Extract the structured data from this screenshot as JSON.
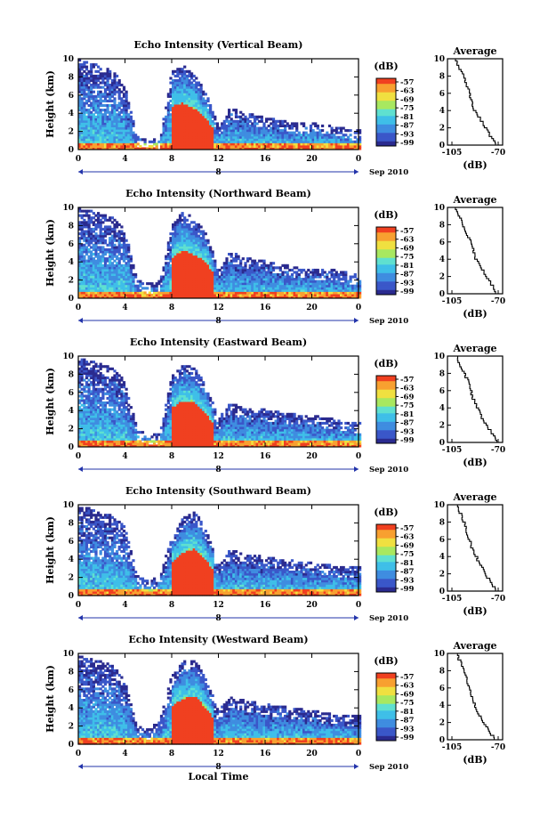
{
  "figure": {
    "date_label": "Sep 2010",
    "day_label": "8",
    "xlabel": "Local Time",
    "ylabel": "Height (km)",
    "colorbar_unit": "(dB)",
    "colorbar_ticks": [
      "-57",
      "-63",
      "-69",
      "-75",
      "-81",
      "-87",
      "-93",
      "-99"
    ],
    "x_ticks": [
      "0",
      "4",
      "8",
      "12",
      "16",
      "20",
      "0"
    ],
    "y_ticks": [
      "0",
      "2",
      "4",
      "6",
      "8",
      "10"
    ],
    "avg_title": "Average",
    "avg_xlabel": "(dB)",
    "avg_ticks": [
      "-105",
      "-70"
    ],
    "colormap": [
      "#2b2b8f",
      "#3a57c9",
      "#3f8de0",
      "#3fbfe8",
      "#5fe0d0",
      "#a8e860",
      "#f0e040",
      "#f8a030",
      "#f04020"
    ]
  },
  "chart_data": [
    {
      "type": "heatmap",
      "title": "Echo Intensity (Vertical Beam)",
      "xlabel": "",
      "ylabel": "Height (km)",
      "xlim": [
        0,
        24
      ],
      "ylim": [
        0,
        10
      ],
      "clim": [
        -99,
        -57
      ],
      "echo_top_km": [
        [
          0,
          9.8
        ],
        [
          1,
          9.5
        ],
        [
          2,
          9.0
        ],
        [
          3,
          8.5
        ],
        [
          4,
          7.0
        ],
        [
          5,
          1.5
        ],
        [
          6,
          1.0
        ],
        [
          7,
          1.2
        ],
        [
          8,
          8.5
        ],
        [
          9,
          9.2
        ],
        [
          10,
          8.0
        ],
        [
          11,
          6.0
        ],
        [
          12,
          2.5
        ],
        [
          13,
          4.5
        ],
        [
          14,
          4.0
        ],
        [
          16,
          3.5
        ],
        [
          18,
          3.0
        ],
        [
          20,
          2.8
        ],
        [
          22,
          2.5
        ],
        [
          24,
          2.0
        ]
      ],
      "average": {
        "x_db": [
          -72,
          -76,
          -80,
          -84,
          -88,
          -90,
          -92,
          -94,
          -96,
          -100,
          -103
        ],
        "height_km": [
          0,
          1,
          2,
          3,
          4,
          5,
          6,
          7,
          8,
          9,
          10
        ]
      }
    },
    {
      "type": "heatmap",
      "title": "Echo Intensity (Northward Beam)",
      "xlabel": "",
      "ylabel": "Height (km)",
      "xlim": [
        0,
        24
      ],
      "ylim": [
        0,
        10
      ],
      "clim": [
        -99,
        -57
      ],
      "echo_top_km": [
        [
          0,
          9.8
        ],
        [
          1,
          9.6
        ],
        [
          2,
          9.2
        ],
        [
          3,
          8.8
        ],
        [
          4,
          7.5
        ],
        [
          5,
          2.0
        ],
        [
          6,
          1.5
        ],
        [
          7,
          1.8
        ],
        [
          8,
          8.0
        ],
        [
          9,
          9.5
        ],
        [
          10,
          8.5
        ],
        [
          11,
          7.0
        ],
        [
          12,
          3.0
        ],
        [
          13,
          5.0
        ],
        [
          14,
          4.5
        ],
        [
          16,
          4.0
        ],
        [
          18,
          3.5
        ],
        [
          20,
          3.2
        ],
        [
          22,
          3.0
        ],
        [
          24,
          2.5
        ]
      ],
      "average": {
        "x_db": [
          -72,
          -75,
          -79,
          -83,
          -87,
          -89,
          -91,
          -94,
          -97,
          -100,
          -103
        ],
        "height_km": [
          0,
          1,
          2,
          3,
          4,
          5,
          6,
          7,
          8,
          9,
          10
        ]
      }
    },
    {
      "type": "heatmap",
      "title": "Echo Intensity (Eastward Beam)",
      "xlabel": "",
      "ylabel": "Height (km)",
      "xlim": [
        0,
        24
      ],
      "ylim": [
        0,
        10
      ],
      "clim": [
        -99,
        -57
      ],
      "echo_top_km": [
        [
          0,
          9.7
        ],
        [
          1,
          9.4
        ],
        [
          2,
          9.0
        ],
        [
          3,
          8.6
        ],
        [
          4,
          7.2
        ],
        [
          5,
          2.0
        ],
        [
          6,
          1.2
        ],
        [
          7,
          1.5
        ],
        [
          8,
          7.8
        ],
        [
          9,
          9.0
        ],
        [
          10,
          8.6
        ],
        [
          11,
          6.5
        ],
        [
          12,
          3.0
        ],
        [
          13,
          4.8
        ],
        [
          14,
          4.2
        ],
        [
          16,
          4.0
        ],
        [
          18,
          3.6
        ],
        [
          20,
          3.4
        ],
        [
          22,
          3.0
        ],
        [
          24,
          2.6
        ]
      ],
      "average": {
        "x_db": [
          -71,
          -75,
          -79,
          -83,
          -86,
          -89,
          -91,
          -93,
          -96,
          -99,
          -102
        ],
        "height_km": [
          0,
          1,
          2,
          3,
          4,
          5,
          6,
          7,
          8,
          9,
          10
        ]
      }
    },
    {
      "type": "heatmap",
      "title": "Echo Intensity (Southward Beam)",
      "xlabel": "",
      "ylabel": "Height (km)",
      "xlim": [
        0,
        24
      ],
      "ylim": [
        0,
        10
      ],
      "clim": [
        -99,
        -57
      ],
      "echo_top_km": [
        [
          0,
          9.8
        ],
        [
          1,
          9.5
        ],
        [
          2,
          9.1
        ],
        [
          3,
          8.7
        ],
        [
          4,
          7.5
        ],
        [
          5,
          2.2
        ],
        [
          6,
          1.5
        ],
        [
          7,
          2.0
        ],
        [
          8,
          6.5
        ],
        [
          9,
          8.5
        ],
        [
          10,
          9.2
        ],
        [
          11,
          7.0
        ],
        [
          12,
          3.2
        ],
        [
          13,
          5.0
        ],
        [
          14,
          4.5
        ],
        [
          16,
          4.2
        ],
        [
          18,
          3.8
        ],
        [
          20,
          3.5
        ],
        [
          22,
          3.2
        ],
        [
          24,
          3.0
        ]
      ],
      "average": {
        "x_db": [
          -72,
          -76,
          -80,
          -84,
          -87,
          -90,
          -92,
          -94,
          -96,
          -99,
          -102
        ],
        "height_km": [
          0,
          1,
          2,
          3,
          4,
          5,
          6,
          7,
          8,
          9,
          10
        ]
      }
    },
    {
      "type": "heatmap",
      "title": "Echo Intensity (Westward Beam)",
      "xlabel": "Local Time",
      "ylabel": "Height (km)",
      "xlim": [
        0,
        24
      ],
      "ylim": [
        0,
        10
      ],
      "clim": [
        -99,
        -57
      ],
      "echo_top_km": [
        [
          0,
          9.6
        ],
        [
          1,
          9.3
        ],
        [
          2,
          9.0
        ],
        [
          3,
          8.5
        ],
        [
          4,
          7.0
        ],
        [
          5,
          2.0
        ],
        [
          6,
          1.5
        ],
        [
          7,
          2.5
        ],
        [
          8,
          7.5
        ],
        [
          9,
          9.0
        ],
        [
          10,
          9.4
        ],
        [
          11,
          7.0
        ],
        [
          12,
          3.5
        ],
        [
          13,
          5.2
        ],
        [
          14,
          4.8
        ],
        [
          16,
          4.3
        ],
        [
          18,
          4.0
        ],
        [
          20,
          3.6
        ],
        [
          22,
          3.2
        ],
        [
          24,
          3.0
        ]
      ],
      "average": {
        "x_db": [
          -73,
          -77,
          -81,
          -85,
          -88,
          -90,
          -92,
          -94,
          -96,
          -99,
          -102
        ],
        "height_km": [
          0,
          1,
          2,
          3,
          4,
          5,
          6,
          7,
          8,
          9,
          10
        ]
      }
    }
  ]
}
